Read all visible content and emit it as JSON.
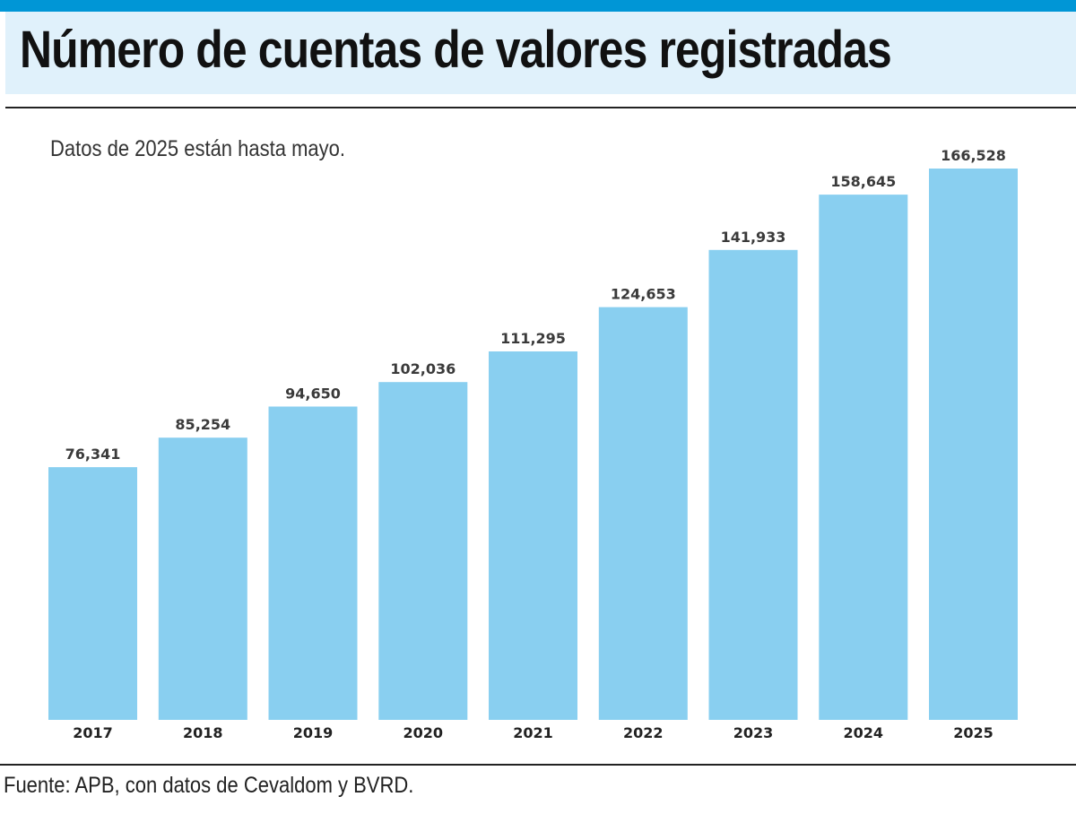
{
  "header": {
    "title": "Número de cuentas de valores registradas",
    "accent_color": "#0096d6",
    "band_color": "#e0f1fb"
  },
  "note": "Datos de 2025 están hasta mayo.",
  "source": "Fuente: APB, con datos de Cevaldom y BVRD.",
  "chart_data": {
    "type": "bar",
    "title": "Número de cuentas de valores registradas",
    "xlabel": "",
    "ylabel": "",
    "categories": [
      "2017",
      "2018",
      "2019",
      "2020",
      "2021",
      "2022",
      "2023",
      "2024",
      "2025"
    ],
    "values": [
      76341,
      85254,
      94650,
      102036,
      111295,
      124653,
      141933,
      158645,
      166528
    ],
    "value_labels": [
      "76,341",
      "85,254",
      "94,650",
      "102,036",
      "111,295",
      "124,653",
      "141,933",
      "158,645",
      "166,528"
    ],
    "ylim": [
      0,
      166528
    ],
    "bar_color": "#89cff0",
    "grid": false,
    "legend": "none"
  }
}
